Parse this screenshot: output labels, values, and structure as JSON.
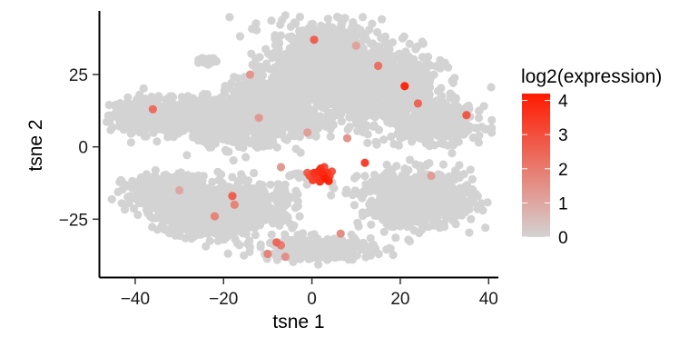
{
  "chart_data": {
    "type": "scatter",
    "title": "",
    "xlabel": "tsne 1",
    "ylabel": "tsne 2",
    "xlim": [
      -48,
      42
    ],
    "ylim": [
      -45,
      47
    ],
    "xticks": [
      -40,
      -20,
      0,
      20,
      40
    ],
    "yticks": [
      -25,
      0,
      25
    ],
    "xtick_labels": [
      "−40",
      "−20",
      "0",
      "20",
      "40"
    ],
    "ytick_labels": [
      "−25",
      "0",
      "25"
    ],
    "grid": false,
    "legend": {
      "title": "log2(expression)",
      "placement": "right",
      "min": 0,
      "max": 4.2,
      "ticks": [
        0,
        1,
        2,
        3,
        4
      ],
      "tick_labels": [
        "0",
        "1",
        "2",
        "3",
        "4"
      ],
      "color_low": "#D3D3D3",
      "color_high": "#FF1A00"
    },
    "clusters": [
      {
        "cx": -36,
        "cy": 11,
        "sx": 6,
        "sy": 3.5,
        "n": 380
      },
      {
        "cx": -26,
        "cy": 10,
        "sx": 5,
        "sy": 4,
        "n": 250
      },
      {
        "cx": -17,
        "cy": 9,
        "sx": 5,
        "sy": 6,
        "n": 350
      },
      {
        "cx": -10,
        "cy": 17,
        "sx": 6,
        "sy": 4,
        "n": 250
      },
      {
        "cx": -24,
        "cy": 30,
        "sx": 1.8,
        "sy": 0.8,
        "n": 25
      },
      {
        "cx": 3,
        "cy": 28,
        "sx": 8,
        "sy": 10,
        "n": 900
      },
      {
        "cx": 14,
        "cy": 18,
        "sx": 9,
        "sy": 7,
        "n": 500
      },
      {
        "cx": -5,
        "cy": 8,
        "sx": 5,
        "sy": 4,
        "n": 200
      },
      {
        "cx": 28,
        "cy": 8,
        "sx": 7,
        "sy": 4,
        "n": 350
      },
      {
        "cx": 20,
        "cy": 25,
        "sx": 6,
        "sy": 6,
        "n": 250
      },
      {
        "cx": -33,
        "cy": -16,
        "sx": 6,
        "sy": 4,
        "n": 350
      },
      {
        "cx": -25,
        "cy": -25,
        "sx": 6,
        "sy": 4,
        "n": 350
      },
      {
        "cx": -15,
        "cy": -20,
        "sx": 7,
        "sy": 5,
        "n": 420
      },
      {
        "cx": 24,
        "cy": -18,
        "sx": 8,
        "sy": 6,
        "n": 650
      },
      {
        "cx": 1,
        "cy": -35,
        "sx": 8,
        "sy": 2.5,
        "n": 350
      },
      {
        "cx": -3,
        "cy": -10,
        "sx": 1.5,
        "sy": 0.8,
        "n": 12
      }
    ],
    "highlighted_points": [
      {
        "x": 0.5,
        "y": -9,
        "v": 3.6
      },
      {
        "x": 1.5,
        "y": -8.5,
        "v": 3.8
      },
      {
        "x": 2.5,
        "y": -9.5,
        "v": 3.9
      },
      {
        "x": 3.5,
        "y": -9,
        "v": 3.5
      },
      {
        "x": 2,
        "y": -7.5,
        "v": 3.7
      },
      {
        "x": 1,
        "y": -10.5,
        "v": 3.4
      },
      {
        "x": 3,
        "y": -11,
        "v": 4.1
      },
      {
        "x": 4,
        "y": -10,
        "v": 3.2
      },
      {
        "x": -0.5,
        "y": -10,
        "v": 3.0
      },
      {
        "x": 0.2,
        "y": -11.5,
        "v": 3.3
      },
      {
        "x": 1.8,
        "y": -12,
        "v": 3.6
      },
      {
        "x": 2.8,
        "y": -7,
        "v": 3.0
      },
      {
        "x": 4.5,
        "y": -8.5,
        "v": 2.8
      },
      {
        "x": 3.8,
        "y": -11.8,
        "v": 3.9
      },
      {
        "x": -1,
        "y": -9,
        "v": 2.6
      },
      {
        "x": 12,
        "y": -5.5,
        "v": 3.3
      },
      {
        "x": 21,
        "y": 21,
        "v": 3.9
      },
      {
        "x": 35,
        "y": 11,
        "v": 2.8
      },
      {
        "x": 24,
        "y": 15,
        "v": 2.5
      },
      {
        "x": 15,
        "y": 28,
        "v": 2.2
      },
      {
        "x": 0.5,
        "y": 37,
        "v": 2.6
      },
      {
        "x": -36,
        "y": 13,
        "v": 2.3
      },
      {
        "x": -18,
        "y": -17,
        "v": 2.6
      },
      {
        "x": -17.5,
        "y": -20,
        "v": 1.8
      },
      {
        "x": -22,
        "y": -24,
        "v": 1.8
      },
      {
        "x": -8,
        "y": -33,
        "v": 2.4
      },
      {
        "x": -7,
        "y": -34,
        "v": 2.0
      },
      {
        "x": -10,
        "y": -37,
        "v": 1.8
      },
      {
        "x": -6,
        "y": -38,
        "v": 1.5
      },
      {
        "x": 6.5,
        "y": -30,
        "v": 1.6
      },
      {
        "x": -14,
        "y": 25,
        "v": 1.4
      },
      {
        "x": -12,
        "y": 10,
        "v": 1.3
      },
      {
        "x": 8,
        "y": 3,
        "v": 1.4
      },
      {
        "x": -1,
        "y": 5,
        "v": 1.2
      },
      {
        "x": 27,
        "y": -10,
        "v": 1.2
      },
      {
        "x": -7,
        "y": -7,
        "v": 1.3
      },
      {
        "x": 10,
        "y": 35,
        "v": 1.1
      },
      {
        "x": -30,
        "y": -15,
        "v": 1.0
      }
    ]
  }
}
